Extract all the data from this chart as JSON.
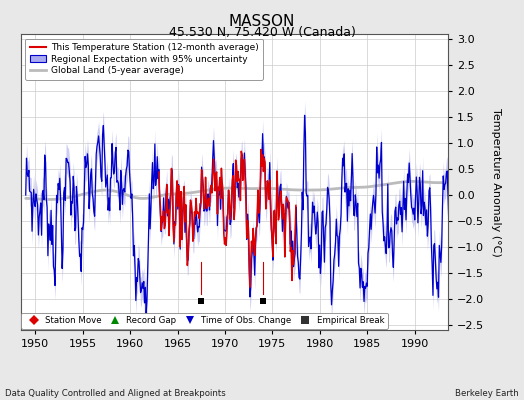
{
  "title": "MASSON",
  "subtitle": "45.530 N, 75.420 W (Canada)",
  "xlabel_note": "Data Quality Controlled and Aligned at Breakpoints",
  "xlabel_right": "Berkeley Earth",
  "ylabel": "Temperature Anomaly (°C)",
  "xlim": [
    1948.5,
    1993.5
  ],
  "ylim": [
    -2.6,
    3.1
  ],
  "yticks": [
    -2.5,
    -2,
    -1.5,
    -1,
    -0.5,
    0,
    0.5,
    1,
    1.5,
    2,
    2.5,
    3
  ],
  "xticks": [
    1950,
    1955,
    1960,
    1965,
    1970,
    1975,
    1980,
    1985,
    1990
  ],
  "background_color": "#e8e8e8",
  "plot_bg_color": "#ffffff",
  "grid_color": "#cccccc",
  "station_color": "#dd0000",
  "regional_color": "#0000cc",
  "regional_fill_color": "#aaaaee",
  "global_color": "#bbbbbb",
  "empirical_break_years": [
    1967.5,
    1974.0
  ],
  "empirical_break_y": -2.05,
  "title_fontsize": 11,
  "subtitle_fontsize": 9,
  "tick_fontsize": 8,
  "ylabel_fontsize": 8
}
